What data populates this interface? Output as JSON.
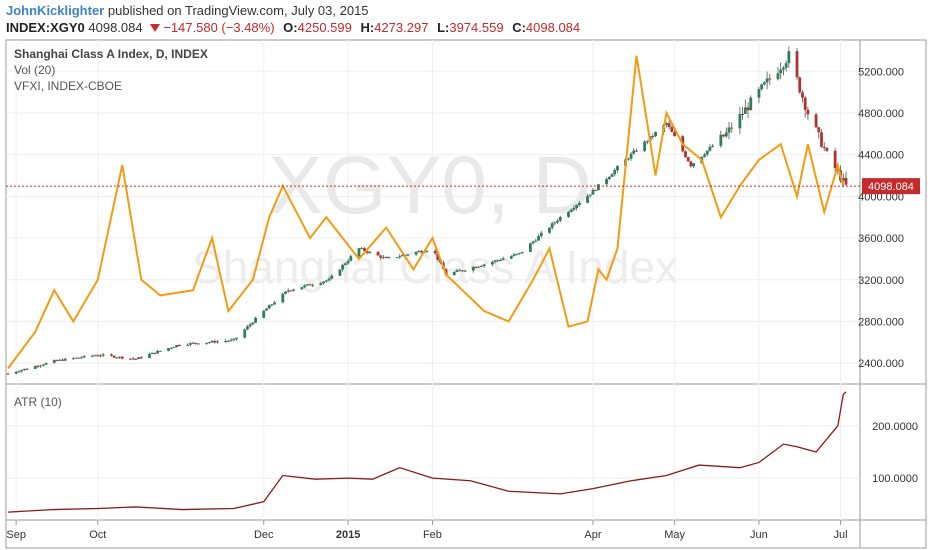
{
  "header": {
    "author": "JohnKicklighter",
    "published": "published on TradingView.com, July 03, 2015",
    "symbol": "INDEX:XGY0",
    "last": "4098.084",
    "change": "−147.580 (−3.48%)",
    "o_label": "O:",
    "o_value": "4250.599",
    "h_label": "H:",
    "h_value": "4273.297",
    "l_label": "L:",
    "l_value": "3974.559",
    "c_label": "C:",
    "c_value": "4098.084"
  },
  "legend": {
    "main": "Shanghai Class A Index, D, INDEX",
    "vol": "Vol (20)",
    "vfxi": "VFXI, INDEX-CBOE",
    "atr": "ATR (10)"
  },
  "watermark": {
    "symbol": "XGY0, D",
    "name": "Shanghai Class A Index"
  },
  "colors": {
    "up": "#2e7d5b",
    "down": "#b03333",
    "vfxi": "#f39c12",
    "atr": "#8b1a1a",
    "last_price_bg": "#c62a2a"
  },
  "chart_data": [
    {
      "type": "candlestick",
      "title": "Shanghai Class A Index, D, INDEX",
      "ylim": [
        2200,
        5500
      ],
      "y_ticks": [
        "5200.000",
        "4800.000",
        "4400.000",
        "4000.000",
        "3600.000",
        "3200.000",
        "2800.000",
        "2400.000"
      ],
      "x_ticks": [
        "Sep",
        "Oct",
        "Dec",
        "2015",
        "Feb",
        "Apr",
        "May",
        "Jun",
        "Jul"
      ],
      "last_price_label": "4098.084",
      "last_price": 4098.084,
      "price_path": [
        [
          "2014-08-29",
          2300
        ],
        [
          "2014-09-15",
          2420
        ],
        [
          "2014-10-01",
          2480
        ],
        [
          "2014-10-15",
          2440
        ],
        [
          "2014-10-31",
          2580
        ],
        [
          "2014-11-20",
          2620
        ],
        [
          "2014-12-01",
          2900
        ],
        [
          "2014-12-10",
          3100
        ],
        [
          "2014-12-25",
          3200
        ],
        [
          "2015-01-05",
          3500
        ],
        [
          "2015-01-15",
          3400
        ],
        [
          "2015-02-01",
          3500
        ],
        [
          "2015-02-06",
          3250
        ],
        [
          "2015-02-20",
          3350
        ],
        [
          "2015-03-05",
          3450
        ],
        [
          "2015-03-20",
          3800
        ],
        [
          "2015-04-01",
          4050
        ],
        [
          "2015-04-15",
          4400
        ],
        [
          "2015-04-28",
          4700
        ],
        [
          "2015-05-07",
          4300
        ],
        [
          "2015-05-20",
          4600
        ],
        [
          "2015-06-01",
          5000
        ],
        [
          "2015-06-12",
          5350
        ],
        [
          "2015-06-19",
          4800
        ],
        [
          "2015-06-26",
          4400
        ],
        [
          "2015-07-03",
          4098
        ]
      ],
      "vfxi_series": {
        "name": "VFXI, INDEX-CBOE",
        "values": [
          [
            "2014-08-29",
            2350
          ],
          [
            "2014-09-08",
            2700
          ],
          [
            "2014-09-15",
            3100
          ],
          [
            "2014-09-22",
            2800
          ],
          [
            "2014-10-01",
            3200
          ],
          [
            "2014-10-10",
            4300
          ],
          [
            "2014-10-17",
            3200
          ],
          [
            "2014-10-24",
            3050
          ],
          [
            "2014-11-05",
            3100
          ],
          [
            "2014-11-12",
            3600
          ],
          [
            "2014-11-18",
            2900
          ],
          [
            "2014-11-27",
            3200
          ],
          [
            "2014-12-03",
            3800
          ],
          [
            "2014-12-08",
            4100
          ],
          [
            "2014-12-18",
            3600
          ],
          [
            "2014-12-24",
            3800
          ],
          [
            "2015-01-05",
            3400
          ],
          [
            "2015-01-15",
            3700
          ],
          [
            "2015-01-25",
            3300
          ],
          [
            "2015-02-01",
            3600
          ],
          [
            "2015-02-06",
            3250
          ],
          [
            "2015-02-20",
            2900
          ],
          [
            "2015-03-01",
            2800
          ],
          [
            "2015-03-10",
            3200
          ],
          [
            "2015-03-16",
            3500
          ],
          [
            "2015-03-23",
            2750
          ],
          [
            "2015-03-30",
            2800
          ],
          [
            "2015-04-03",
            3300
          ],
          [
            "2015-04-06",
            3200
          ],
          [
            "2015-04-10",
            3500
          ],
          [
            "2015-04-17",
            5350
          ],
          [
            "2015-04-24",
            4200
          ],
          [
            "2015-04-28",
            4800
          ],
          [
            "2015-05-04",
            4500
          ],
          [
            "2015-05-11",
            4350
          ],
          [
            "2015-05-18",
            3800
          ],
          [
            "2015-05-25",
            4100
          ],
          [
            "2015-06-01",
            4350
          ],
          [
            "2015-06-09",
            4500
          ],
          [
            "2015-06-15",
            4000
          ],
          [
            "2015-06-19",
            4500
          ],
          [
            "2015-06-25",
            3850
          ],
          [
            "2015-06-30",
            4300
          ],
          [
            "2015-07-02",
            4100
          ]
        ]
      }
    },
    {
      "type": "line",
      "title": "ATR (10)",
      "ylim": [
        20,
        280
      ],
      "y_ticks": [
        "200.0000",
        "100.0000"
      ],
      "series": [
        {
          "name": "ATR (10)",
          "values": [
            [
              "2014-08-29",
              35
            ],
            [
              "2014-09-15",
              40
            ],
            [
              "2014-10-01",
              42
            ],
            [
              "2014-10-15",
              45
            ],
            [
              "2014-11-01",
              40
            ],
            [
              "2014-11-20",
              42
            ],
            [
              "2014-12-01",
              55
            ],
            [
              "2014-12-08",
              105
            ],
            [
              "2014-12-20",
              98
            ],
            [
              "2015-01-01",
              100
            ],
            [
              "2015-01-10",
              98
            ],
            [
              "2015-01-20",
              120
            ],
            [
              "2015-02-01",
              100
            ],
            [
              "2015-02-15",
              95
            ],
            [
              "2015-03-01",
              75
            ],
            [
              "2015-03-20",
              70
            ],
            [
              "2015-04-01",
              80
            ],
            [
              "2015-04-15",
              95
            ],
            [
              "2015-04-28",
              105
            ],
            [
              "2015-05-10",
              125
            ],
            [
              "2015-05-25",
              120
            ],
            [
              "2015-06-01",
              130
            ],
            [
              "2015-06-10",
              165
            ],
            [
              "2015-06-15",
              160
            ],
            [
              "2015-06-22",
              150
            ],
            [
              "2015-06-26",
              175
            ],
            [
              "2015-06-30",
              200
            ],
            [
              "2015-07-02",
              260
            ],
            [
              "2015-07-03",
              265
            ]
          ]
        }
      ]
    }
  ]
}
